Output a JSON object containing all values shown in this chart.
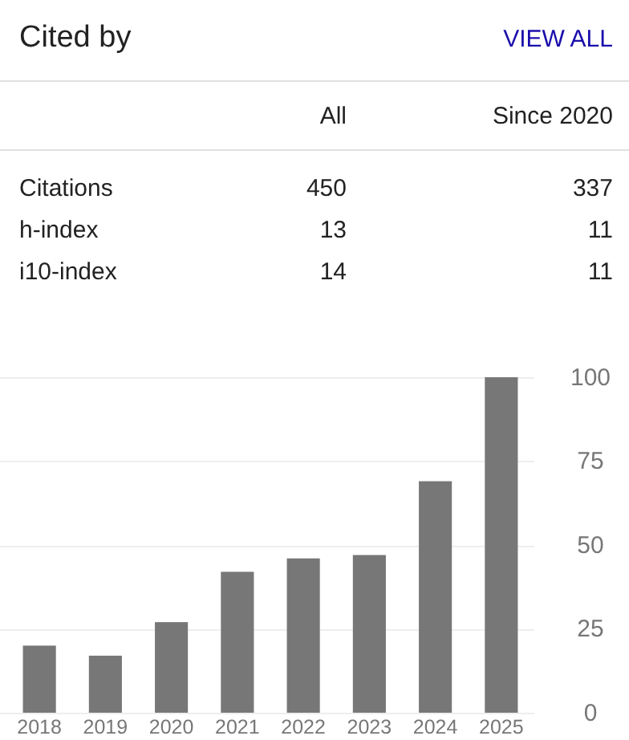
{
  "chart_data": [
    {
      "type": "other",
      "title": "Cited by",
      "data_labels": true,
      "annotations": [
        "VIEW ALL"
      ],
      "categories": [
        "Citations",
        "h-index",
        "i10-index"
      ],
      "series": [
        {
          "name": "All",
          "color": "#222222",
          "values": [
            450,
            13,
            14
          ]
        },
        {
          "name": "Since 2020",
          "color": "#222222",
          "values": [
            337,
            11,
            11
          ]
        }
      ]
    },
    {
      "type": "bar",
      "categories": [
        "2018",
        "2019",
        "2020",
        "2021",
        "2022",
        "2023",
        "2024",
        "2025"
      ],
      "values": [
        20,
        17,
        27,
        42,
        46,
        47,
        69,
        100
      ],
      "color": "#777777",
      "ylim": [
        0,
        100
      ],
      "yticks": [
        0,
        25,
        50,
        75,
        100
      ],
      "grid": "y"
    }
  ]
}
